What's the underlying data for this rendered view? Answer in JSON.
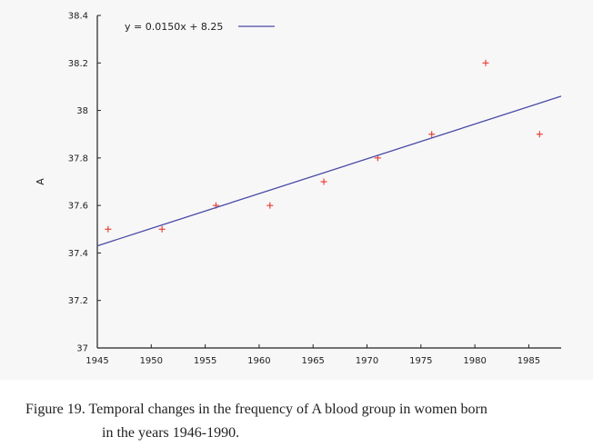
{
  "chart_data": {
    "type": "scatter",
    "ylabel": "A",
    "xlim": [
      1945,
      1988
    ],
    "ylim": [
      37,
      38.4
    ],
    "xticks": [
      1945,
      1950,
      1955,
      1960,
      1965,
      1970,
      1975,
      1980,
      1985
    ],
    "yticks": [
      37,
      37.2,
      37.4,
      37.6,
      37.8,
      38,
      38.2,
      38.4
    ],
    "ytick_labels": [
      "37",
      "37.2",
      "37.4",
      "37.6",
      "37.8",
      "38",
      "38.2",
      "38.4"
    ],
    "points": [
      {
        "x": 1946,
        "y": 37.5
      },
      {
        "x": 1951,
        "y": 37.5
      },
      {
        "x": 1956,
        "y": 37.6
      },
      {
        "x": 1961,
        "y": 37.6
      },
      {
        "x": 1966,
        "y": 37.7
      },
      {
        "x": 1971,
        "y": 37.8
      },
      {
        "x": 1976,
        "y": 37.9
      },
      {
        "x": 1981,
        "y": 38.2
      },
      {
        "x": 1986,
        "y": 37.9
      }
    ],
    "trendline": {
      "label": "y = 0.0150x + 8.25",
      "x": [
        1945,
        1988
      ],
      "y": [
        37.43,
        38.06
      ]
    },
    "legend_position": "top-left",
    "grid": false,
    "colors": {
      "points": "#e8443a",
      "trendline": "#4a4aa8",
      "axis": "#222222"
    }
  },
  "caption": {
    "line1": "Figure 19. Temporal changes in the frequency of A blood group in women born",
    "line2": "in the years 1946-1990."
  }
}
